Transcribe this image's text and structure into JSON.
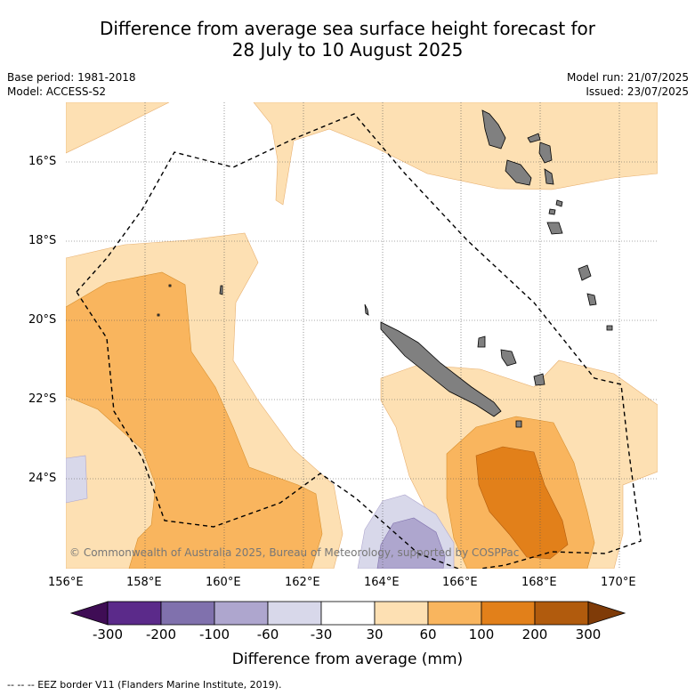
{
  "title_line1": "Difference from average sea surface height forecast for",
  "title_line2": "28 July to 10 August 2025",
  "base_period": "Base period: 1981-2018",
  "model": "Model: ACCESS-S2",
  "model_run": "Model run: 21/07/2025",
  "issued": "Issued: 23/07/2025",
  "lat_labels": [
    "16°S",
    "18°S",
    "20°S",
    "22°S",
    "24°S"
  ],
  "lon_labels": [
    "156°E",
    "158°E",
    "160°E",
    "162°E",
    "164°E",
    "166°E",
    "168°E",
    "170°E"
  ],
  "copyright": "© Commonwealth of Australia 2025, Bureau of Meteorology, supported by COSPPac",
  "colorbar": {
    "title": "Difference from average (mm)",
    "tick_labels": [
      "-300",
      "-200",
      "-100",
      "-60",
      "-30",
      "30",
      "60",
      "100",
      "200",
      "300"
    ],
    "colors": [
      "#3f0d55",
      "#5b2a8a",
      "#8071ad",
      "#aea6ce",
      "#d8d8ea",
      "#ffffff",
      "#fde0b3",
      "#f9b55e",
      "#e2801a",
      "#b15b0d",
      "#7f3b08"
    ]
  },
  "footnote": "-- -- -- EEZ border V11 (Flanders Marine Institute, 2019).",
  "colors": {
    "land": "#808080",
    "pos_30_60": "#fde0b3",
    "pos_60_100": "#f9b55e",
    "pos_100_200": "#e2801a",
    "neg_30_60": "#d8d8ea",
    "neg_60_100": "#aea6ce"
  }
}
